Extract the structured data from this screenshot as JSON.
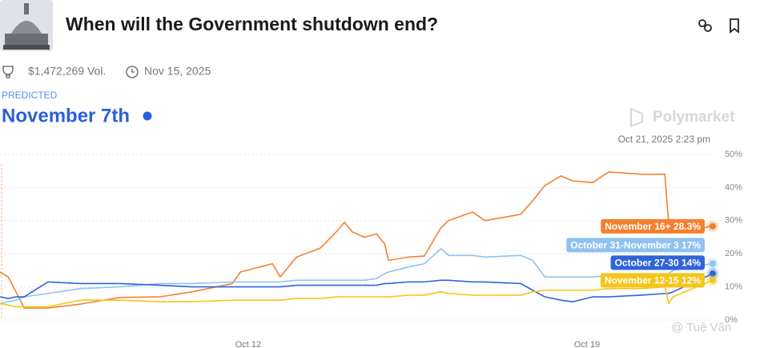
{
  "header": {
    "title": "When will the Government shutdown end?",
    "volume": "$1,472,269 Vol.",
    "end_date": "Nov 15, 2025"
  },
  "prediction": {
    "label": "PREDICTED",
    "outcome": "November 7th"
  },
  "brand": "Polymarket",
  "watermark": "@ Tuệ Văn",
  "chart_data": {
    "type": "line",
    "timestamp": "Oct 21, 2025 2:23 pm",
    "x": [
      6.87,
      7.04,
      7.2,
      7.37,
      7.86,
      8.53,
      9.35,
      10.18,
      10.84,
      11.67,
      11.84,
      12.5,
      12.66,
      13.0,
      13.49,
      13.82,
      13.99,
      14.15,
      14.4,
      14.65,
      14.82,
      14.9,
      15.31,
      15.64,
      15.98,
      16.14,
      16.64,
      16.89,
      17.63,
      17.88,
      18.13,
      18.46,
      18.71,
      19.12,
      19.45,
      20.12,
      20.61,
      20.69,
      20.78,
      21.6
    ],
    "xlim": [
      6.87,
      21.6
    ],
    "xticks": [
      {
        "value": 12,
        "label": "Oct 12"
      },
      {
        "value": 19,
        "label": "Oct 19"
      }
    ],
    "ylim": [
      0,
      50
    ],
    "yticks": [
      {
        "value": 0,
        "label": "0%"
      },
      {
        "value": 10,
        "label": "10%"
      },
      {
        "value": 20,
        "label": "20%"
      },
      {
        "value": 30,
        "label": "30%"
      },
      {
        "value": 40,
        "label": "40%"
      },
      {
        "value": 50,
        "label": "50%"
      }
    ],
    "grid": true,
    "series": [
      {
        "name": "November 16+",
        "color": "#f4802f",
        "values": [
          14.5,
          13,
          8.5,
          3.6,
          3.6,
          4.8,
          6.8,
          7,
          8.5,
          11,
          14.5,
          17,
          13,
          19,
          21.7,
          26.6,
          29.5,
          26.6,
          25,
          26,
          23,
          18,
          19,
          19.3,
          27.8,
          30,
          32.6,
          30,
          31.9,
          36,
          40.6,
          43.5,
          42,
          41.5,
          44.7,
          44,
          44,
          29,
          26.6,
          28.3
        ],
        "value_labels": [
          null,
          null,
          null,
          null,
          null,
          null,
          null,
          null,
          null,
          null,
          null,
          null,
          null,
          null,
          null,
          null,
          null,
          null,
          null,
          null,
          null,
          null,
          null,
          null,
          null,
          null,
          null,
          null,
          null,
          null,
          null,
          null,
          null,
          null,
          null,
          null,
          null,
          null,
          null,
          "28.3%"
        ]
      },
      {
        "name": "October 31-November 3",
        "color": "#8fc2f0",
        "values": [
          5,
          5.5,
          6,
          7,
          8,
          9.5,
          10,
          11,
          11,
          11.5,
          11.5,
          11.5,
          11.5,
          12,
          12,
          12,
          12,
          12,
          12,
          12.5,
          14,
          14.5,
          16,
          17,
          21.5,
          19.5,
          19.5,
          19,
          19.5,
          18,
          13,
          13,
          13,
          13,
          13.5,
          13.5,
          13.5,
          14,
          15,
          17
        ],
        "value_labels": [
          null,
          null,
          null,
          null,
          null,
          null,
          null,
          null,
          null,
          null,
          null,
          null,
          null,
          null,
          null,
          null,
          null,
          null,
          null,
          null,
          null,
          null,
          null,
          null,
          null,
          null,
          null,
          null,
          null,
          null,
          null,
          null,
          null,
          null,
          null,
          null,
          null,
          null,
          null,
          "17%"
        ]
      },
      {
        "name": "October 27-30",
        "color": "#2f63d8",
        "values": [
          7,
          6.5,
          7,
          7,
          11.5,
          11,
          11,
          10.5,
          10,
          10,
          10,
          10,
          10,
          10.5,
          10.5,
          10.5,
          10.5,
          10.5,
          10.5,
          10.5,
          11,
          11,
          11.5,
          11.5,
          12,
          12,
          11.5,
          11.5,
          11,
          9,
          7,
          6,
          5.5,
          7,
          7,
          7.5,
          8,
          8,
          8.5,
          14
        ],
        "value_labels": [
          null,
          null,
          null,
          null,
          null,
          null,
          null,
          null,
          null,
          null,
          null,
          null,
          null,
          null,
          null,
          null,
          null,
          null,
          null,
          null,
          null,
          null,
          null,
          null,
          null,
          null,
          null,
          null,
          null,
          null,
          null,
          null,
          null,
          null,
          null,
          null,
          null,
          null,
          null,
          "14%"
        ]
      },
      {
        "name": "November 12-15",
        "color": "#f5c518",
        "values": [
          5,
          4.5,
          4,
          4,
          4,
          6,
          6,
          5.5,
          5.5,
          6,
          6,
          6,
          6,
          6.5,
          6.5,
          7,
          7,
          7,
          7,
          7,
          7,
          7,
          7.5,
          7.5,
          8.5,
          8,
          7.5,
          7.5,
          7.5,
          8.5,
          9,
          9,
          9,
          9,
          9.5,
          9.5,
          10,
          5,
          7,
          12
        ],
        "value_labels": [
          null,
          null,
          null,
          null,
          null,
          null,
          null,
          null,
          null,
          null,
          null,
          null,
          null,
          null,
          null,
          null,
          null,
          null,
          null,
          null,
          null,
          null,
          null,
          null,
          null,
          null,
          null,
          null,
          null,
          null,
          null,
          null,
          null,
          null,
          null,
          null,
          null,
          null,
          null,
          "12%"
        ]
      }
    ]
  }
}
